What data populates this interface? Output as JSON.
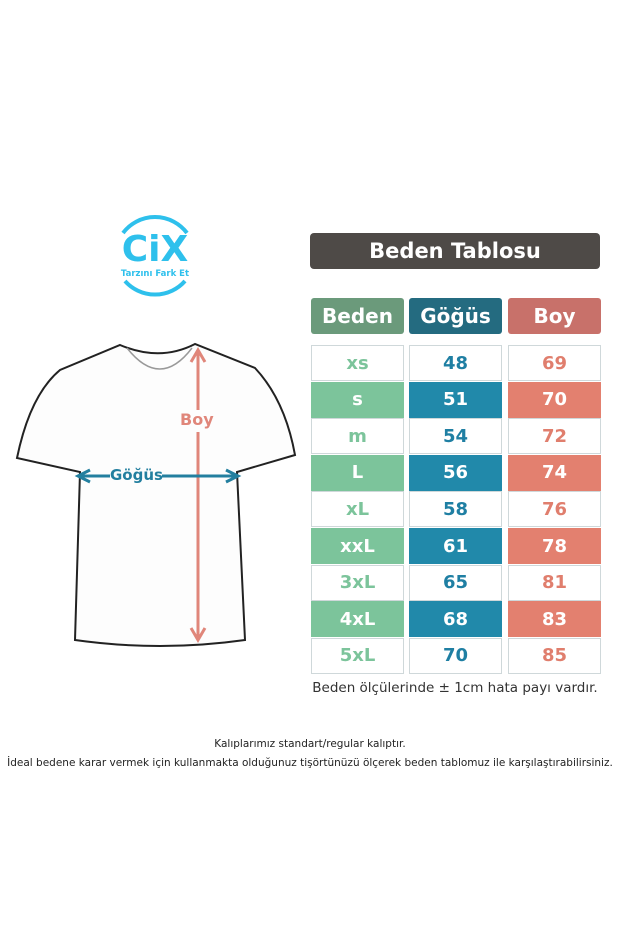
{
  "logo": {
    "brand": "CiX",
    "tagline": "Tarzını Fark Et",
    "color": "#2ec0ec"
  },
  "shirt": {
    "length_label": "Boy",
    "chest_label": "Göğüs",
    "length_color": "#e0867a",
    "chest_color": "#237f9f"
  },
  "table": {
    "title": "Beden Tablosu",
    "headers": [
      {
        "label": "Beden",
        "color": "#6b9a7b"
      },
      {
        "label": "Göğüs",
        "color": "#246b80"
      },
      {
        "label": "Boy",
        "color": "#c8716a"
      }
    ],
    "fill_colors": [
      "#7cc49b",
      "#2189aa",
      "#e3806f"
    ],
    "rows": [
      {
        "size": "xs",
        "chest": "48",
        "length": "69"
      },
      {
        "size": "s",
        "chest": "51",
        "length": "70"
      },
      {
        "size": "m",
        "chest": "54",
        "length": "72"
      },
      {
        "size": "L",
        "chest": "56",
        "length": "74"
      },
      {
        "size": "xL",
        "chest": "58",
        "length": "76"
      },
      {
        "size": "xxL",
        "chest": "61",
        "length": "78"
      },
      {
        "size": "3xL",
        "chest": "65",
        "length": "81"
      },
      {
        "size": "4xL",
        "chest": "68",
        "length": "83"
      },
      {
        "size": "5xL",
        "chest": "70",
        "length": "85"
      }
    ],
    "note": "Beden ölçülerinde ± 1cm hata payı vardır."
  },
  "footer": {
    "line1": "Kalıplarımız standart/regular kalıptır.",
    "line2": "İdeal bedene karar vermek için kullanmakta olduğunuz tişörtünüzü ölçerek beden tablomuz ile karşılaştırabilirsiniz."
  }
}
